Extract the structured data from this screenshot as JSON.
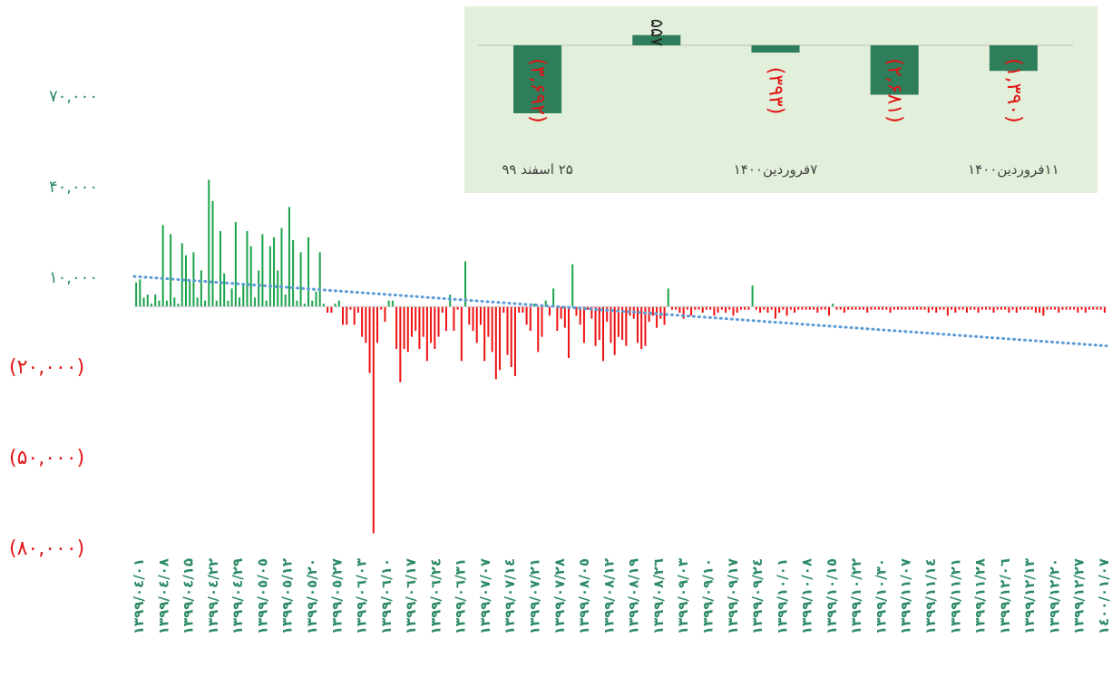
{
  "chart_data": [
    {
      "type": "bar",
      "title": "",
      "xlabel": "",
      "ylabel": "",
      "ylim": [
        -80000,
        70000
      ],
      "y_ticks": [
        70000,
        40000,
        10000,
        -20000,
        -50000,
        -80000
      ],
      "y_tick_labels": [
        "۷۰,۰۰۰",
        "۴۰,۰۰۰",
        "۱۰,۰۰۰",
        "(۲۰,۰۰۰)",
        "(۵۰,۰۰۰)",
        "(۸۰,۰۰۰)"
      ],
      "negative_format": "parentheses",
      "x_tick_labels": [
        "۱۳۹۹/۰٤/۰۱",
        "۱۳۹۹/۰٤/۰۸",
        "۱۳۹۹/۰٤/۱۵",
        "۱۳۹۹/۰٤/۲۲",
        "۱۳۹۹/۰٤/۲۹",
        "۱۳۹۹/۰٥/۰٥",
        "۱۳۹۹/۰٥/۱۲",
        "۱۳۹۹/۰٥/۲۰",
        "۱۳۹۹/۰٥/۲۷",
        "۱۳۹۹/۰٦/۰۳",
        "۱۳۹۹/۰٦/۱۰",
        "۱۳۹۹/۰٦/۱۷",
        "۱۳۹۹/۰٦/۲٤",
        "۱۳۹۹/۰٦/۳۱",
        "۱۳۹۹/۰۷/۰۷",
        "۱۳۹۹/۰۷/۱٤",
        "۱۳۹۹/۰۷/۲۱",
        "۱۳۹۹/۰۷/۲۸",
        "۱۳۹۹/۰۸/۰٥",
        "۱۳۹۹/۰۸/۱۲",
        "۱۳۹۹/۰۸/۱۹",
        "۱۳۹۹/۰۸/۲٦",
        "۱۳۹۹/۰۹/۰۳",
        "۱۳۹۹/۰۹/۱۰",
        "۱۳۹۹/۰۹/۱۷",
        "۱۳۹۹/۰۹/۲٤",
        "۱۳۹۹/۱۰/۰۱",
        "۱۳۹۹/۱۰/۰۸",
        "۱۳۹۹/۱۰/۱٥",
        "۱۳۹۹/۱۰/۲۲",
        "۱۳۹۹/۱۰/۳۰",
        "۱۳۹۹/۱۱/۰۷",
        "۱۳۹۹/۱۱/۱٤",
        "۱۳۹۹/۱۱/۲۱",
        "۱۳۹۹/۱۱/۲۸",
        "۱۳۹۹/۱۲/۰٦",
        "۱۳۹۹/۱۲/۱۳",
        "۱۳۹۹/۱۲/۲۰",
        "۱۳۹۹/۱۲/۲۷",
        "۱٤۰۰/۰۱/۰۷"
      ],
      "positive_color": "#1aa34a",
      "negative_color": "#ee1111",
      "trendline": {
        "type": "linear",
        "style": "dotted",
        "color": "#5b9bd5",
        "start": 10000,
        "end": -13000
      },
      "values": [
        8000,
        9000,
        3000,
        4000,
        1000,
        4000,
        2000,
        27000,
        2000,
        24000,
        3000,
        1000,
        21000,
        17000,
        9000,
        18000,
        3000,
        12000,
        2000,
        42000,
        35000,
        2000,
        25000,
        11000,
        2000,
        6000,
        28000,
        3000,
        7000,
        25000,
        20000,
        3000,
        12000,
        24000,
        2000,
        20000,
        23000,
        12000,
        26000,
        4000,
        33000,
        22000,
        2000,
        18000,
        1000,
        23000,
        2000,
        5000,
        18000,
        1000,
        -2000,
        -2000,
        1000,
        2000,
        -6000,
        -6000,
        -1000,
        -6000,
        -2000,
        -10000,
        -12000,
        -22000,
        -75000,
        -12000,
        -1000,
        -5000,
        2000,
        2000,
        -14000,
        -25000,
        -14000,
        -15000,
        -10000,
        -8000,
        -14000,
        -10000,
        -18000,
        -12000,
        -14000,
        -10000,
        -2000,
        -8000,
        4000,
        -8000,
        -1000,
        -18000,
        15000,
        -6000,
        -8000,
        -12000,
        -6000,
        -18000,
        -10000,
        -15000,
        -24000,
        -21000,
        -2000,
        -16000,
        -20000,
        -23000,
        -2000,
        -2000,
        -6000,
        -8000,
        1000,
        -15000,
        -10000,
        2000,
        -3000,
        6000,
        -8000,
        -4000,
        -7000,
        -17000,
        14000,
        -3000,
        -6000,
        -12000,
        -1000,
        -4000,
        -13000,
        -11000,
        -18000,
        -5000,
        -12000,
        -16000,
        -10000,
        -11000,
        -13000,
        -3000,
        -4000,
        -12000,
        -14000,
        -13000,
        -5000,
        -3000,
        -7000,
        -4000,
        -6000,
        6000,
        -1000,
        -1000,
        -2000,
        -4000,
        -1000,
        -3000,
        -1000,
        -1000,
        -2000,
        -1000,
        -1000,
        -3000,
        -2000,
        -1000,
        -2000,
        -1000,
        -3000,
        -2000,
        -1000,
        -1000,
        -1000,
        7000,
        -1000,
        -2000,
        -1000,
        -2000,
        -1000,
        -4000,
        -2000,
        -1000,
        -3000,
        -1000,
        -2000,
        -1000,
        -1000,
        -1000,
        -1000,
        -1000,
        -2000,
        -1000,
        -1000,
        -3000,
        1000,
        -1000,
        -1000,
        -2000,
        -1000,
        -1000,
        -1000,
        -1000,
        -1000,
        -2000,
        -1000,
        -1000,
        -1000,
        -1000,
        -1000,
        -2000,
        -1000,
        -1000,
        -1000,
        -1000,
        -1000,
        -1000,
        -1000,
        -1000,
        -1000,
        -2000,
        -1000,
        -2000,
        -1000,
        -1000,
        -3000,
        -1000,
        -2000,
        -1000,
        -1000,
        -2000,
        -1000,
        -1000,
        -2000,
        -1000,
        -1000,
        -1000,
        -2000,
        -1000,
        -1000,
        -1000,
        -2000,
        -1000,
        -2000,
        -1000,
        -1000,
        -1000,
        -1000,
        -2000,
        -2000,
        -3000,
        -1000,
        -1000,
        -1000,
        -2000,
        -1000,
        -1000,
        -1000,
        -1000,
        -2000,
        -1000,
        -2000,
        -1000,
        -1000,
        -1000,
        -1000,
        -2000
      ]
    },
    {
      "type": "bar",
      "title": "",
      "categories": [
        "",
        "",
        "",
        "",
        ""
      ],
      "values": [
        -3692,
        557,
        -393,
        -2681,
        -1390
      ],
      "data_labels": [
        "(۳,۶۹۲)",
        "۵۵۷",
        "(۳۹۳)",
        "(۲,۶۸۱)",
        "(۱,۳۹۰)"
      ],
      "x_labels": [
        "۲۵ اسفند ۹۹",
        "۷فروردین۱۴۰۰",
        "۱۱فروردین۱۴۰۰"
      ],
      "background": "#e2efda",
      "bar_color": "#2e7d5b",
      "ylim": [
        -4000,
        800
      ]
    }
  ]
}
